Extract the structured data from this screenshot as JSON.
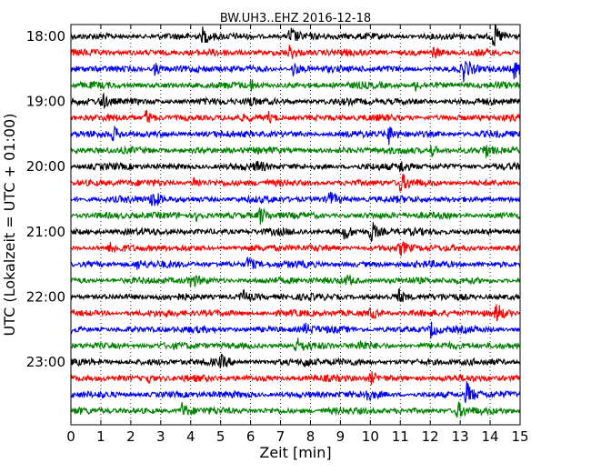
{
  "chart_data": {
    "type": "line",
    "title": "BW.UH3..EHZ 2016-12-18",
    "xlabel": "Zeit  [min]",
    "ylabel": "UTC (Lokalzeit = UTC + 01:00)",
    "xlim": [
      0,
      15
    ],
    "x_ticks": [
      "0",
      "1",
      "2",
      "3",
      "4",
      "5",
      "6",
      "7",
      "8",
      "9",
      "10",
      "11",
      "12",
      "13",
      "14",
      "15"
    ],
    "y_tick_labels": [
      "18:00",
      "19:00",
      "20:00",
      "21:00",
      "22:00",
      "23:00"
    ],
    "y_tick_rows": [
      0,
      4,
      8,
      12,
      16,
      20
    ],
    "trace_row_interval_minutes": 15,
    "rows": 24,
    "row_start_times": [
      "18:00",
      "18:15",
      "18:30",
      "18:45",
      "19:00",
      "19:15",
      "19:30",
      "19:45",
      "20:00",
      "20:15",
      "20:30",
      "20:45",
      "21:00",
      "21:15",
      "21:30",
      "21:45",
      "22:00",
      "22:15",
      "22:30",
      "22:45",
      "23:00",
      "23:15",
      "23:30",
      "23:45"
    ],
    "color_cycle": [
      "#000000",
      "#ff0000",
      "#0000ff",
      "#008000"
    ],
    "grid": {
      "vertical": "dotted",
      "horizontal": false
    },
    "events": [
      {
        "row": 0,
        "t": 4.4,
        "amp": 1.0
      },
      {
        "row": 0,
        "t": 7.3,
        "amp": 1.3
      },
      {
        "row": 0,
        "t": 14.1,
        "amp": 1.5
      },
      {
        "row": 1,
        "t": 7.3,
        "amp": 0.9
      },
      {
        "row": 1,
        "t": 12.1,
        "amp": 0.7
      },
      {
        "row": 2,
        "t": 2.8,
        "amp": 0.8
      },
      {
        "row": 2,
        "t": 7.4,
        "amp": 1.0
      },
      {
        "row": 2,
        "t": 13.1,
        "amp": 1.4
      },
      {
        "row": 2,
        "t": 14.8,
        "amp": 1.1
      },
      {
        "row": 3,
        "t": 6.0,
        "amp": 0.6
      },
      {
        "row": 3,
        "t": 11.5,
        "amp": 0.6
      },
      {
        "row": 4,
        "t": 1.0,
        "amp": 1.1
      },
      {
        "row": 4,
        "t": 5.9,
        "amp": 0.7
      },
      {
        "row": 5,
        "t": 2.5,
        "amp": 1.0
      },
      {
        "row": 5,
        "t": 6.6,
        "amp": 0.6
      },
      {
        "row": 6,
        "t": 1.4,
        "amp": 0.8
      },
      {
        "row": 6,
        "t": 10.6,
        "amp": 1.2
      },
      {
        "row": 7,
        "t": 12.0,
        "amp": 0.9
      },
      {
        "row": 7,
        "t": 13.8,
        "amp": 0.9
      },
      {
        "row": 8,
        "t": 6.2,
        "amp": 0.7
      },
      {
        "row": 8,
        "t": 11.0,
        "amp": 0.7
      },
      {
        "row": 9,
        "t": 4.1,
        "amp": 0.7
      },
      {
        "row": 9,
        "t": 11.0,
        "amp": 1.2
      },
      {
        "row": 10,
        "t": 2.7,
        "amp": 1.5
      },
      {
        "row": 10,
        "t": 8.6,
        "amp": 1.1
      },
      {
        "row": 11,
        "t": 4.2,
        "amp": 0.8
      },
      {
        "row": 11,
        "t": 6.3,
        "amp": 1.1
      },
      {
        "row": 12,
        "t": 9.1,
        "amp": 1.1
      },
      {
        "row": 12,
        "t": 10.0,
        "amp": 1.6
      },
      {
        "row": 13,
        "t": 1.3,
        "amp": 0.7
      },
      {
        "row": 13,
        "t": 11.0,
        "amp": 0.8
      },
      {
        "row": 14,
        "t": 2.2,
        "amp": 0.6
      },
      {
        "row": 14,
        "t": 5.9,
        "amp": 1.0
      },
      {
        "row": 15,
        "t": 4.0,
        "amp": 0.9
      },
      {
        "row": 15,
        "t": 9.2,
        "amp": 0.6
      },
      {
        "row": 16,
        "t": 5.7,
        "amp": 0.9
      },
      {
        "row": 16,
        "t": 10.9,
        "amp": 1.0
      },
      {
        "row": 17,
        "t": 10.0,
        "amp": 0.8
      },
      {
        "row": 17,
        "t": 14.2,
        "amp": 1.4
      },
      {
        "row": 18,
        "t": 7.8,
        "amp": 0.7
      },
      {
        "row": 18,
        "t": 12.0,
        "amp": 1.0
      },
      {
        "row": 19,
        "t": 7.5,
        "amp": 1.0
      },
      {
        "row": 19,
        "t": 9.6,
        "amp": 0.8
      },
      {
        "row": 20,
        "t": 5.0,
        "amp": 0.7
      },
      {
        "row": 20,
        "t": 7.8,
        "amp": 0.6
      },
      {
        "row": 21,
        "t": 2.5,
        "amp": 0.8
      },
      {
        "row": 21,
        "t": 10.0,
        "amp": 0.8
      },
      {
        "row": 22,
        "t": 9.8,
        "amp": 0.8
      },
      {
        "row": 22,
        "t": 13.2,
        "amp": 1.6
      },
      {
        "row": 23,
        "t": 3.7,
        "amp": 1.0
      },
      {
        "row": 23,
        "t": 12.9,
        "amp": 1.1
      }
    ]
  }
}
